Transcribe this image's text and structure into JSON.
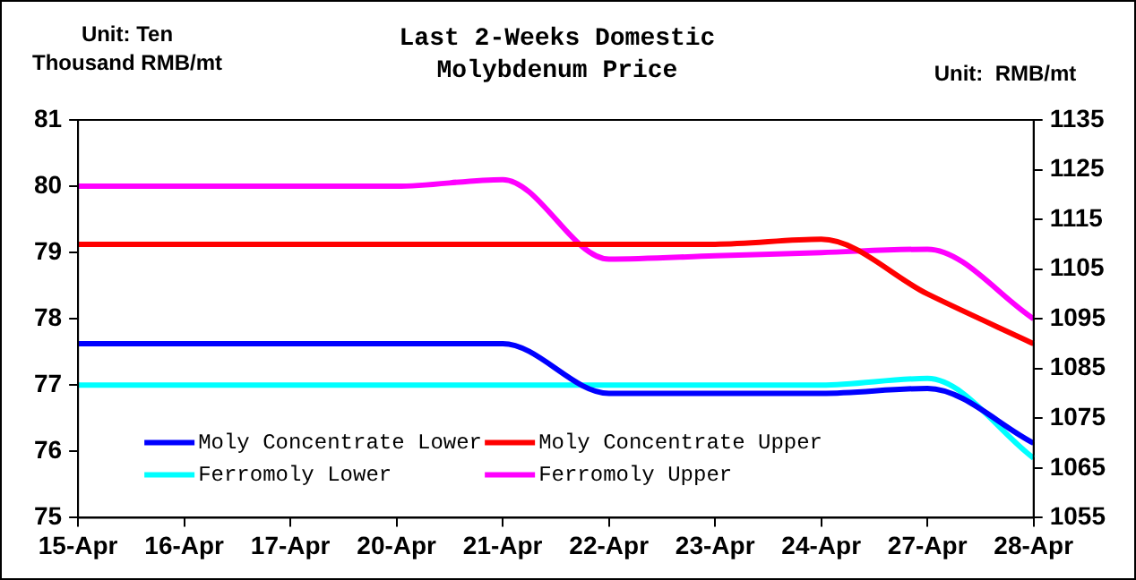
{
  "chart_data": {
    "type": "line",
    "title": "Last 2-Weeks Domestic\nMolybdenum Price",
    "ylabel": "Unit: Ten\nThousand RMB/mt",
    "y2label": "Unit:  RMB/mt",
    "categories": [
      "15-Apr",
      "16-Apr",
      "17-Apr",
      "20-Apr",
      "21-Apr",
      "22-Apr",
      "23-Apr",
      "24-Apr",
      "27-Apr",
      "28-Apr"
    ],
    "series": [
      {
        "name": "Moly Concentrate Lower",
        "color": "#0000ff",
        "axis": "y2",
        "values": [
          1090,
          1090,
          1090,
          1090,
          1090,
          1080,
          1080,
          1080,
          1081,
          1070
        ]
      },
      {
        "name": "Moly Concentrate Upper",
        "color": "#ff0000",
        "axis": "y2",
        "values": [
          1110,
          1110,
          1110,
          1110,
          1110,
          1110,
          1110,
          1111,
          1100,
          1090
        ]
      },
      {
        "name": "Ferromoly Lower",
        "color": "#00ffff",
        "values": [
          77,
          77,
          77,
          77,
          77,
          77,
          77,
          77,
          77.1,
          75.9
        ]
      },
      {
        "name": "Ferromoly Upper",
        "color": "#ff00ff",
        "values": [
          80,
          80,
          80,
          80,
          80.1,
          78.9,
          78.95,
          79,
          79.05,
          78
        ]
      }
    ],
    "ylim": [
      75,
      81
    ],
    "yticks": [
      75,
      76,
      77,
      78,
      79,
      80,
      81
    ],
    "y2lim": [
      1055,
      1135
    ],
    "y2ticks": [
      1055,
      1065,
      1075,
      1085,
      1095,
      1105,
      1115,
      1125,
      1135
    ],
    "grid": false,
    "legend": "bottom left",
    "marker": "none",
    "line_style": "solid"
  }
}
